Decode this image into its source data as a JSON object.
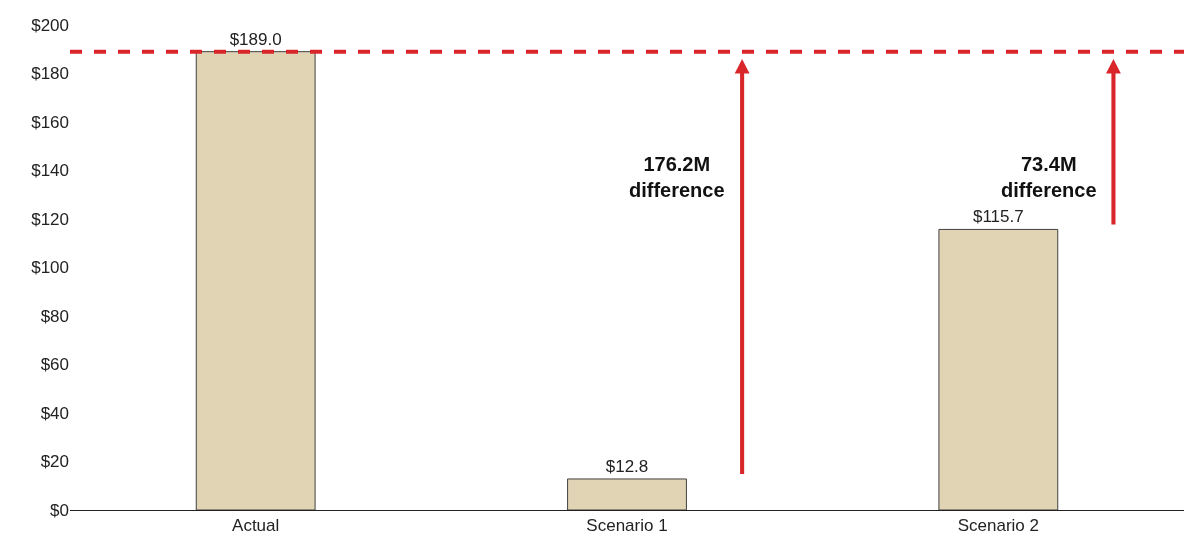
{
  "chart_data": {
    "type": "bar",
    "categories": [
      "Actual",
      "Scenario 1",
      "Scenario 2"
    ],
    "values": [
      189.0,
      12.8,
      115.7
    ],
    "color": "#e0d4b4",
    "value_labels": [
      "$189.0",
      "$12.8",
      "$115.7"
    ],
    "ylim": [
      0,
      200
    ],
    "yticks": [
      {
        "value": 0,
        "label": "$0"
      },
      {
        "value": 20,
        "label": "$20"
      },
      {
        "value": 40,
        "label": "$40"
      },
      {
        "value": 60,
        "label": "$60"
      },
      {
        "value": 80,
        "label": "$80"
      },
      {
        "value": 100,
        "label": "$100"
      },
      {
        "value": 120,
        "label": "$120"
      },
      {
        "value": 140,
        "label": "$140"
      },
      {
        "value": 160,
        "label": "$160"
      },
      {
        "value": 180,
        "label": "$180"
      },
      {
        "value": 200,
        "label": "$200"
      }
    ],
    "ref_lines": [
      {
        "axis": "y",
        "value": 189.0,
        "label": null,
        "color": "#d9262b",
        "line_style": "dashed"
      }
    ],
    "annotations": [
      "176.2M\ndifference",
      "73.4M\ndifference"
    ],
    "grid": false,
    "legend": false
  }
}
